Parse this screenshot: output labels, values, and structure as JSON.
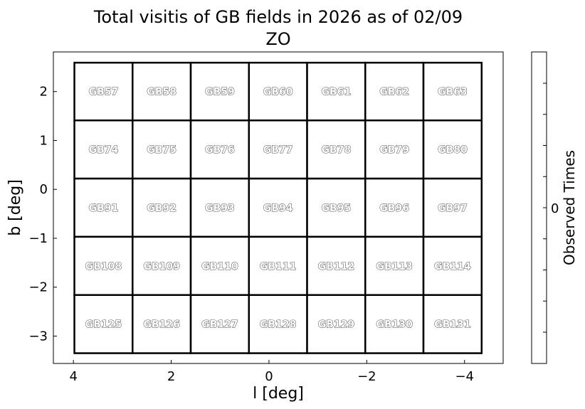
{
  "chart_data": {
    "type": "heatmap",
    "title": "Total visitis of GB fields in 2026 as of 02/09",
    "subtitle": "ZO",
    "xlabel": "l [deg]",
    "ylabel": "b [deg]",
    "xlim": [
      4.41,
      -4.79
    ],
    "ylim": [
      -3.56,
      2.81
    ],
    "xticks": [
      4,
      2,
      0,
      -2,
      -4
    ],
    "xtick_labels": [
      "4",
      "2",
      "0",
      "−2",
      "−4"
    ],
    "yticks": [
      2,
      1,
      0,
      -1,
      -2,
      -3
    ],
    "ytick_labels": [
      "2",
      "1",
      "0",
      "−1",
      "−2",
      "−3"
    ],
    "l_edges": [
      3.98,
      2.79,
      1.6,
      0.41,
      -0.78,
      -1.97,
      -3.16,
      -4.35
    ],
    "b_edges": [
      2.59,
      1.41,
      0.22,
      -0.97,
      -2.16,
      -3.35
    ],
    "fields": [
      [
        "GB57",
        "GB58",
        "GB59",
        "GB60",
        "GB61",
        "GB62",
        "GB63"
      ],
      [
        "GB74",
        "GB75",
        "GB76",
        "GB77",
        "GB78",
        "GB79",
        "GB80"
      ],
      [
        "GB91",
        "GB92",
        "GB93",
        "GB94",
        "GB95",
        "GB96",
        "GB97"
      ],
      [
        "GB108",
        "GB109",
        "GB110",
        "GB111",
        "GB112",
        "GB113",
        "GB114"
      ],
      [
        "GB125",
        "GB126",
        "GB127",
        "GB128",
        "GB129",
        "GB130",
        "GB131"
      ]
    ],
    "values": [
      [
        0,
        0,
        0,
        0,
        0,
        0,
        0
      ],
      [
        0,
        0,
        0,
        0,
        0,
        0,
        0
      ],
      [
        0,
        0,
        0,
        0,
        0,
        0,
        0
      ],
      [
        0,
        0,
        0,
        0,
        0,
        0,
        0
      ],
      [
        0,
        0,
        0,
        0,
        0,
        0,
        0
      ]
    ],
    "colorbar": {
      "label": "Observed Times",
      "tick_labels": [
        "0"
      ]
    },
    "grid": false
  }
}
